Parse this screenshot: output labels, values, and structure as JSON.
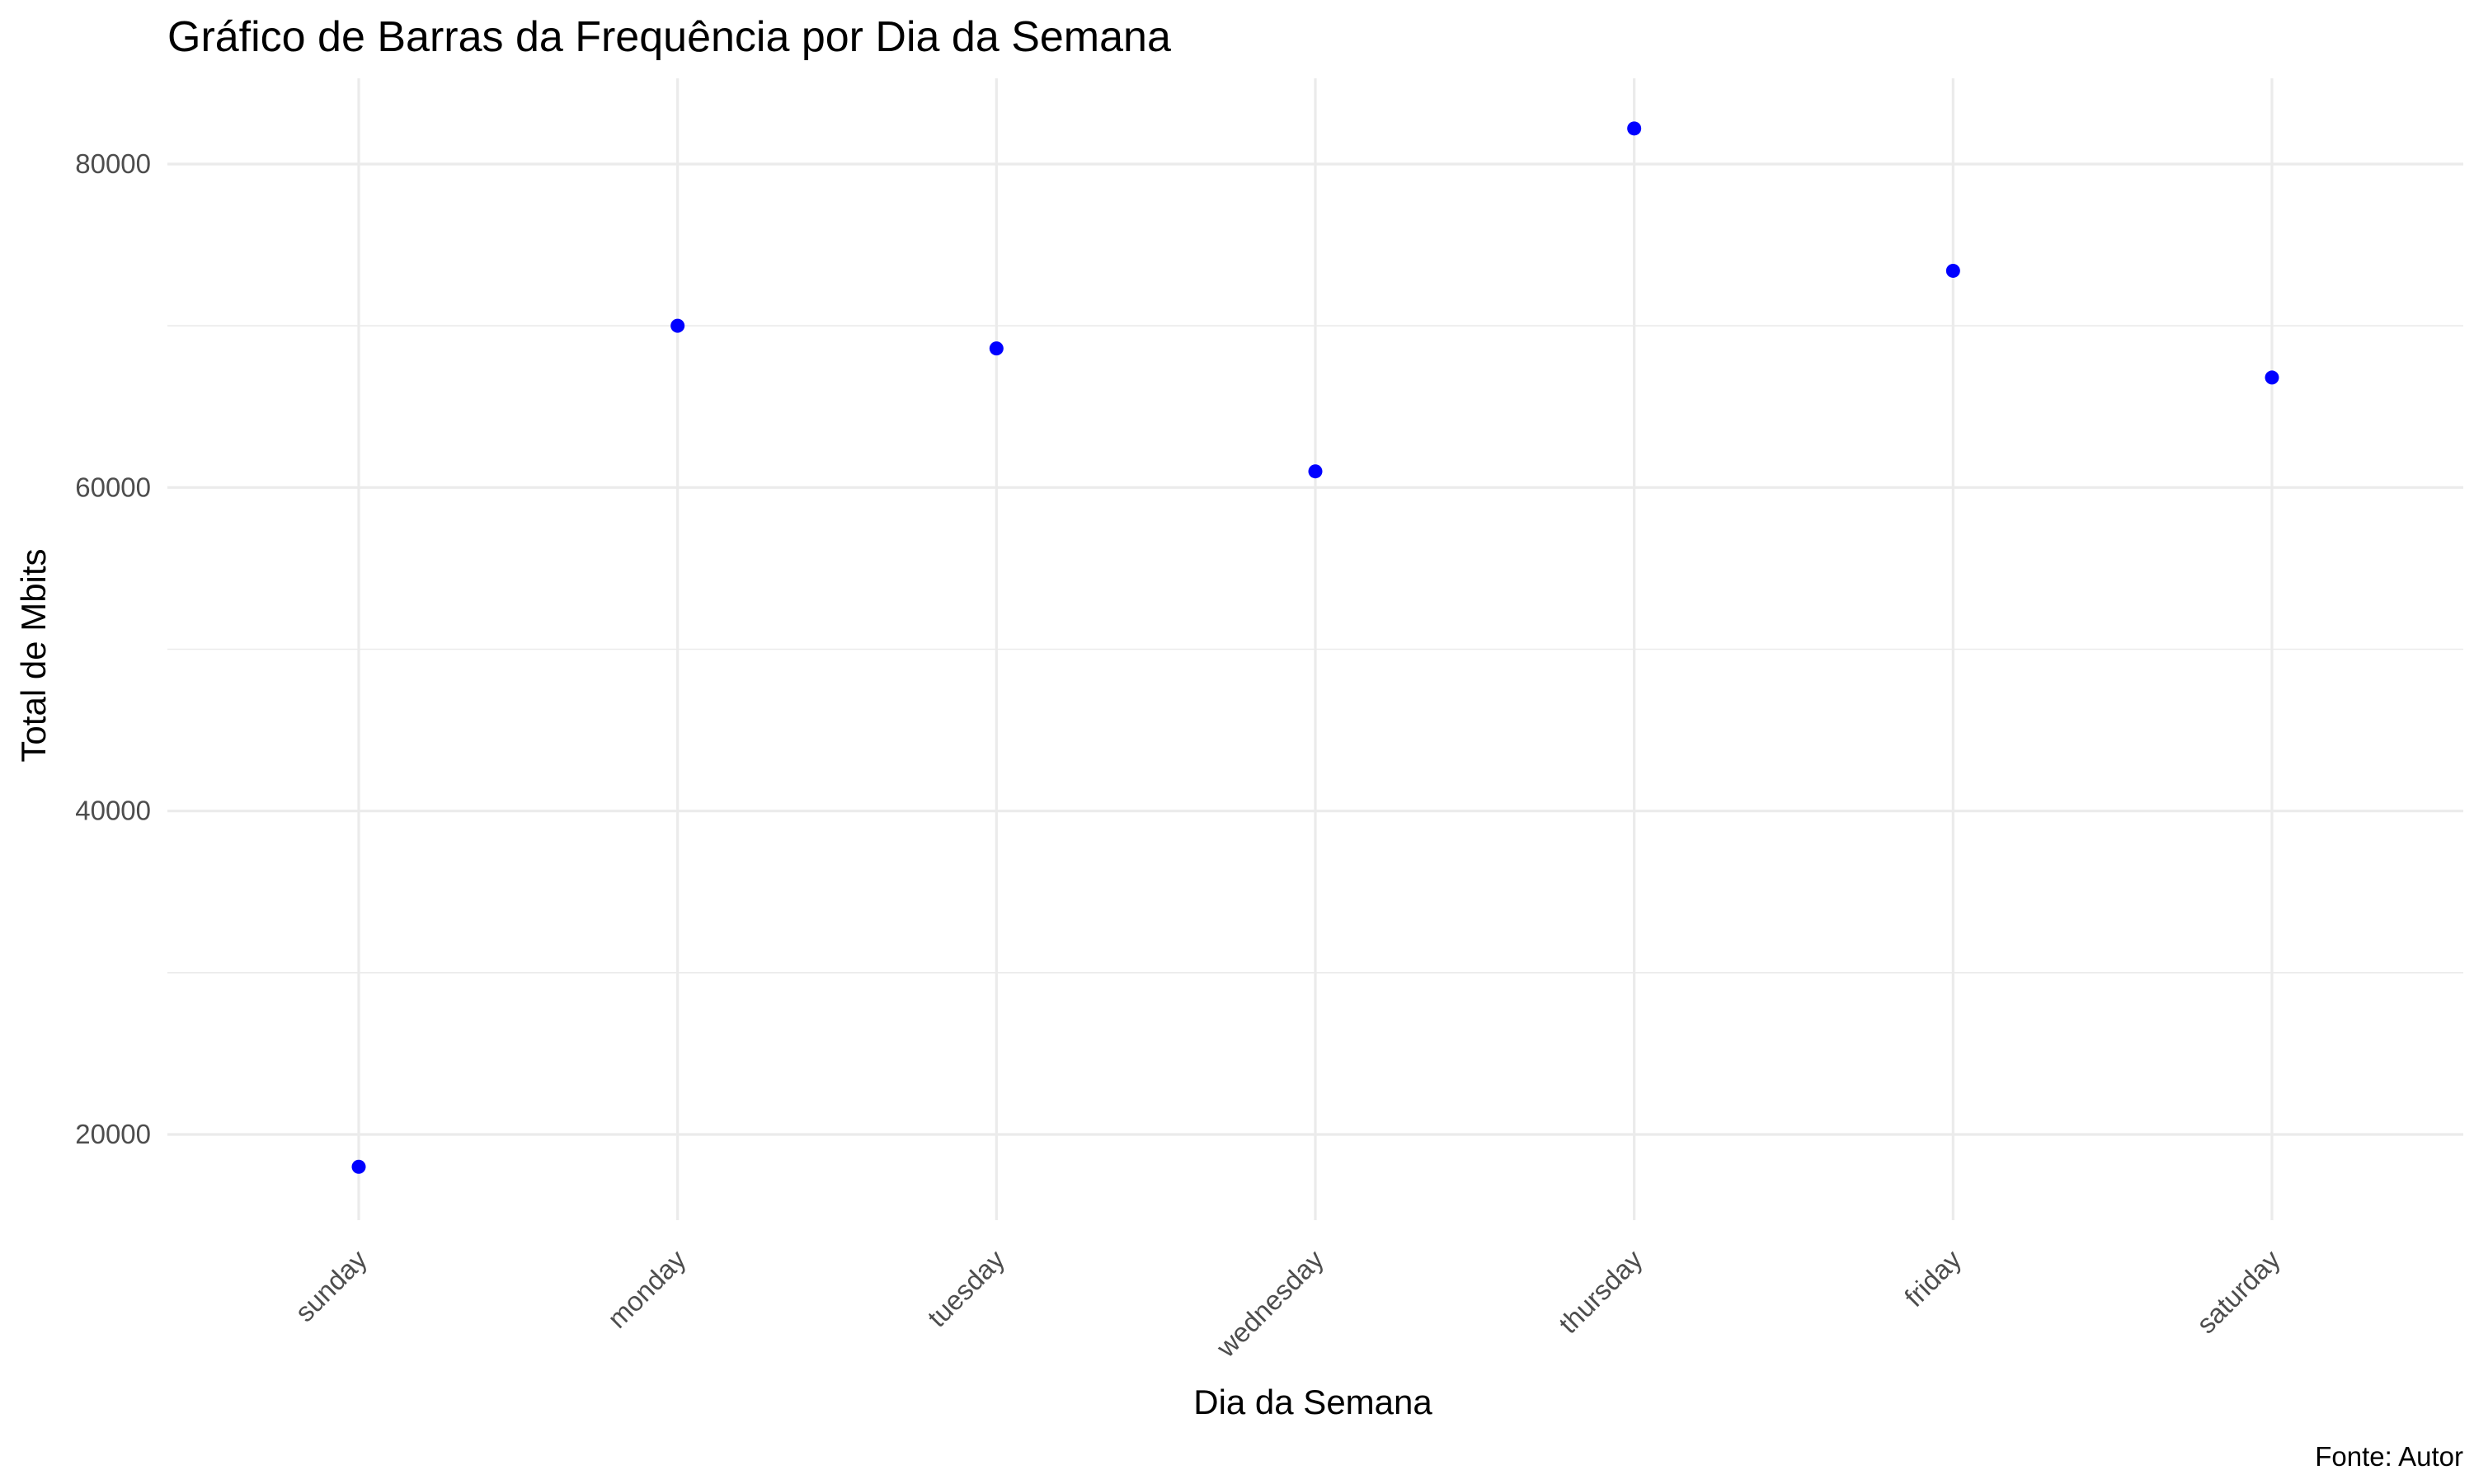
{
  "chart_data": {
    "type": "scatter",
    "title": "Gráfico de Barras da Frequência por Dia da Semana",
    "xlabel": "Dia da Semana",
    "ylabel": "Total de Mbits",
    "caption": "Fonte: Autor",
    "categories": [
      "sunday",
      "monday",
      "tuesday",
      "wednesday",
      "thursday",
      "friday",
      "saturday"
    ],
    "values": [
      18000,
      70000,
      68600,
      61000,
      82200,
      73400,
      66800
    ],
    "ylim": [
      14700,
      85300
    ],
    "yticks": [
      20000,
      40000,
      60000,
      80000
    ],
    "yticks_minor": [
      30000,
      50000,
      70000
    ],
    "point_color": "#0000ff",
    "grid": true,
    "legend": "none"
  }
}
